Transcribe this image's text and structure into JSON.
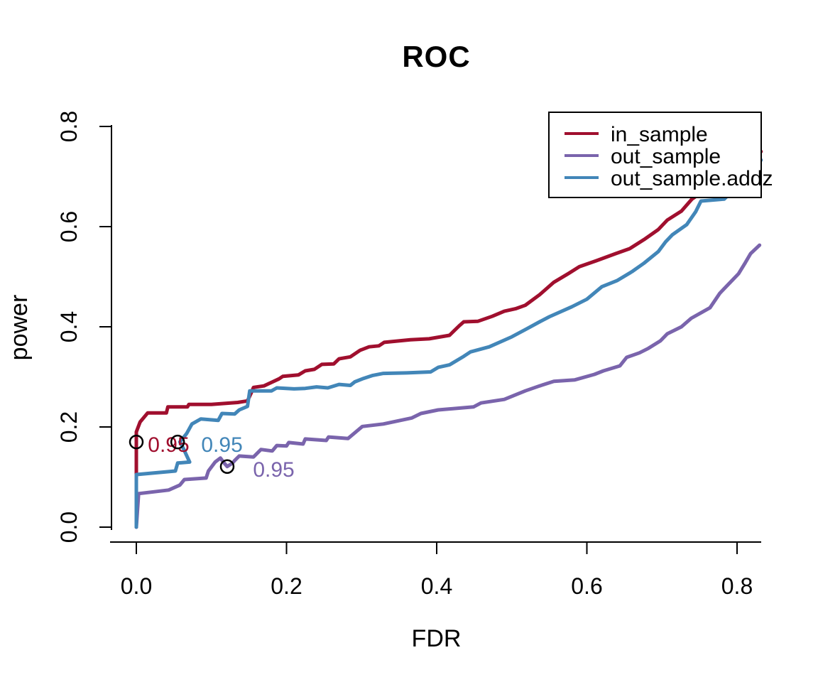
{
  "chart_data": {
    "type": "line",
    "title": "ROC",
    "xlabel": "FDR",
    "ylabel": "power",
    "x_ticks": [
      "0.0",
      "0.2",
      "0.4",
      "0.6",
      "0.8"
    ],
    "y_ticks": [
      "0.0",
      "0.2",
      "0.4",
      "0.6",
      "0.8"
    ],
    "xlim": [
      0,
      0.84
    ],
    "ylim": [
      0,
      0.8
    ],
    "grid": false,
    "legend_position": "top-right",
    "axis_color": "#000000",
    "series": [
      {
        "name": "in_sample",
        "color": "#A00F2E",
        "points": [
          [
            0,
            0
          ],
          [
            0,
            0.19
          ],
          [
            0.005,
            0.21
          ],
          [
            0.015,
            0.228
          ],
          [
            0.04,
            0.228
          ],
          [
            0.042,
            0.24
          ],
          [
            0.068,
            0.24
          ],
          [
            0.07,
            0.245
          ],
          [
            0.1,
            0.245
          ],
          [
            0.135,
            0.249
          ],
          [
            0.148,
            0.252
          ],
          [
            0.153,
            0.268
          ],
          [
            0.156,
            0.279
          ],
          [
            0.17,
            0.282
          ],
          [
            0.19,
            0.296
          ],
          [
            0.195,
            0.301
          ],
          [
            0.216,
            0.304
          ],
          [
            0.225,
            0.312
          ],
          [
            0.237,
            0.315
          ],
          [
            0.247,
            0.325
          ],
          [
            0.263,
            0.326
          ],
          [
            0.27,
            0.336
          ],
          [
            0.285,
            0.34
          ],
          [
            0.298,
            0.353
          ],
          [
            0.31,
            0.36
          ],
          [
            0.323,
            0.362
          ],
          [
            0.33,
            0.369
          ],
          [
            0.365,
            0.374
          ],
          [
            0.39,
            0.376
          ],
          [
            0.417,
            0.383
          ],
          [
            0.43,
            0.402
          ],
          [
            0.436,
            0.41
          ],
          [
            0.455,
            0.411
          ],
          [
            0.474,
            0.421
          ],
          [
            0.49,
            0.431
          ],
          [
            0.505,
            0.436
          ],
          [
            0.518,
            0.443
          ],
          [
            0.537,
            0.464
          ],
          [
            0.556,
            0.489
          ],
          [
            0.575,
            0.506
          ],
          [
            0.59,
            0.52
          ],
          [
            0.613,
            0.532
          ],
          [
            0.638,
            0.546
          ],
          [
            0.657,
            0.556
          ],
          [
            0.676,
            0.574
          ],
          [
            0.695,
            0.594
          ],
          [
            0.707,
            0.613
          ],
          [
            0.726,
            0.631
          ],
          [
            0.74,
            0.655
          ],
          [
            0.76,
            0.675
          ],
          [
            0.78,
            0.695
          ],
          [
            0.8,
            0.715
          ],
          [
            0.82,
            0.735
          ],
          [
            0.832,
            0.75
          ]
        ]
      },
      {
        "name": "out_sample",
        "color": "#7A64AC",
        "points": [
          [
            0,
            0
          ],
          [
            0.003,
            0.067
          ],
          [
            0.043,
            0.074
          ],
          [
            0.058,
            0.084
          ],
          [
            0.064,
            0.095
          ],
          [
            0.093,
            0.098
          ],
          [
            0.096,
            0.112
          ],
          [
            0.105,
            0.13
          ],
          [
            0.112,
            0.138
          ],
          [
            0.117,
            0.128
          ],
          [
            0.121,
            0.121
          ],
          [
            0.128,
            0.128
          ],
          [
            0.131,
            0.133
          ],
          [
            0.137,
            0.142
          ],
          [
            0.156,
            0.14
          ],
          [
            0.166,
            0.155
          ],
          [
            0.181,
            0.152
          ],
          [
            0.187,
            0.163
          ],
          [
            0.2,
            0.162
          ],
          [
            0.203,
            0.169
          ],
          [
            0.222,
            0.166
          ],
          [
            0.225,
            0.176
          ],
          [
            0.253,
            0.173
          ],
          [
            0.256,
            0.18
          ],
          [
            0.282,
            0.177
          ],
          [
            0.301,
            0.201
          ],
          [
            0.329,
            0.206
          ],
          [
            0.367,
            0.218
          ],
          [
            0.379,
            0.227
          ],
          [
            0.402,
            0.234
          ],
          [
            0.449,
            0.24
          ],
          [
            0.459,
            0.248
          ],
          [
            0.49,
            0.255
          ],
          [
            0.518,
            0.272
          ],
          [
            0.537,
            0.282
          ],
          [
            0.556,
            0.291
          ],
          [
            0.584,
            0.294
          ],
          [
            0.61,
            0.305
          ],
          [
            0.622,
            0.312
          ],
          [
            0.644,
            0.322
          ],
          [
            0.653,
            0.339
          ],
          [
            0.67,
            0.348
          ],
          [
            0.682,
            0.357
          ],
          [
            0.698,
            0.372
          ],
          [
            0.707,
            0.386
          ],
          [
            0.726,
            0.4
          ],
          [
            0.739,
            0.417
          ],
          [
            0.752,
            0.428
          ],
          [
            0.764,
            0.438
          ],
          [
            0.777,
            0.467
          ],
          [
            0.786,
            0.481
          ],
          [
            0.795,
            0.495
          ],
          [
            0.802,
            0.506
          ],
          [
            0.811,
            0.528
          ],
          [
            0.818,
            0.546
          ],
          [
            0.83,
            0.563
          ]
        ]
      },
      {
        "name": "out_sample.addz",
        "color": "#4286B8",
        "points": [
          [
            0,
            0
          ],
          [
            0,
            0.105
          ],
          [
            0.052,
            0.112
          ],
          [
            0.055,
            0.128
          ],
          [
            0.071,
            0.13
          ],
          [
            0.062,
            0.159
          ],
          [
            0.058,
            0.17
          ],
          [
            0.067,
            0.187
          ],
          [
            0.074,
            0.206
          ],
          [
            0.086,
            0.216
          ],
          [
            0.109,
            0.213
          ],
          [
            0.114,
            0.227
          ],
          [
            0.131,
            0.226
          ],
          [
            0.137,
            0.234
          ],
          [
            0.148,
            0.241
          ],
          [
            0.151,
            0.272
          ],
          [
            0.18,
            0.272
          ],
          [
            0.187,
            0.278
          ],
          [
            0.21,
            0.276
          ],
          [
            0.225,
            0.277
          ],
          [
            0.24,
            0.28
          ],
          [
            0.255,
            0.278
          ],
          [
            0.27,
            0.285
          ],
          [
            0.285,
            0.283
          ],
          [
            0.291,
            0.29
          ],
          [
            0.301,
            0.296
          ],
          [
            0.315,
            0.303
          ],
          [
            0.329,
            0.307
          ],
          [
            0.36,
            0.308
          ],
          [
            0.392,
            0.31
          ],
          [
            0.402,
            0.319
          ],
          [
            0.417,
            0.324
          ],
          [
            0.436,
            0.341
          ],
          [
            0.445,
            0.35
          ],
          [
            0.47,
            0.36
          ],
          [
            0.5,
            0.38
          ],
          [
            0.52,
            0.396
          ],
          [
            0.537,
            0.41
          ],
          [
            0.55,
            0.42
          ],
          [
            0.58,
            0.44
          ],
          [
            0.6,
            0.455
          ],
          [
            0.62,
            0.48
          ],
          [
            0.64,
            0.492
          ],
          [
            0.66,
            0.51
          ],
          [
            0.676,
            0.527
          ],
          [
            0.695,
            0.55
          ],
          [
            0.705,
            0.57
          ],
          [
            0.714,
            0.584
          ],
          [
            0.733,
            0.604
          ],
          [
            0.745,
            0.63
          ],
          [
            0.752,
            0.651
          ],
          [
            0.783,
            0.655
          ],
          [
            0.8,
            0.68
          ],
          [
            0.82,
            0.71
          ],
          [
            0.832,
            0.733
          ]
        ]
      }
    ],
    "markers": [
      {
        "series": "in_sample",
        "label": "0.95",
        "point": [
          0,
          0.17
        ],
        "label_at": [
          0.043,
          0.166
        ],
        "color": "#A00F2E"
      },
      {
        "series": "out_sample.addz",
        "label": "0.95",
        "point": [
          0.055,
          0.17
        ],
        "label_at": [
          0.114,
          0.166
        ],
        "color": "#4286B8"
      },
      {
        "series": "out_sample",
        "label": "0.95",
        "point": [
          0.121,
          0.121
        ],
        "label_at": [
          0.183,
          0.116
        ],
        "color": "#7A64AC"
      }
    ],
    "marker_circle_color": "#000000"
  }
}
